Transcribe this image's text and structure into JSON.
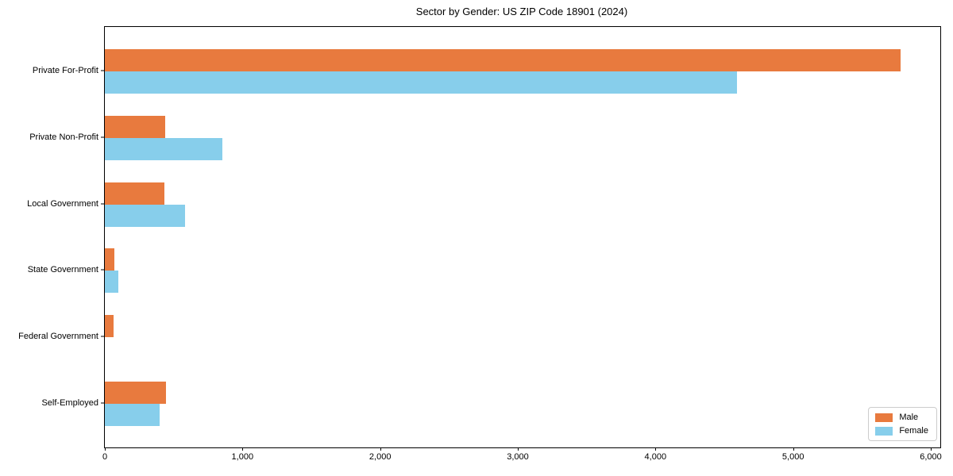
{
  "chart_data": {
    "type": "bar",
    "orientation": "horizontal",
    "title": "Sector by Gender: US ZIP Code 18901 (2024)",
    "categories": [
      "Private For-Profit",
      "Private Non-Profit",
      "Local Government",
      "State Government",
      "Federal Government",
      "Self-Employed"
    ],
    "series": [
      {
        "name": "Male",
        "color": "#E87A3E",
        "values": [
          5780,
          440,
          430,
          70,
          65,
          445
        ]
      },
      {
        "name": "Female",
        "color": "#87CEEB",
        "values": [
          4590,
          855,
          580,
          95,
          0,
          400
        ]
      }
    ],
    "xlim": [
      0,
      6070
    ],
    "xticks": [
      0,
      1000,
      2000,
      3000,
      4000,
      5000,
      6000
    ],
    "xtick_labels": [
      "0",
      "1,000",
      "2,000",
      "3,000",
      "4,000",
      "5,000",
      "6,000"
    ],
    "legend_position": "lower right",
    "grid": false,
    "frame": true
  }
}
